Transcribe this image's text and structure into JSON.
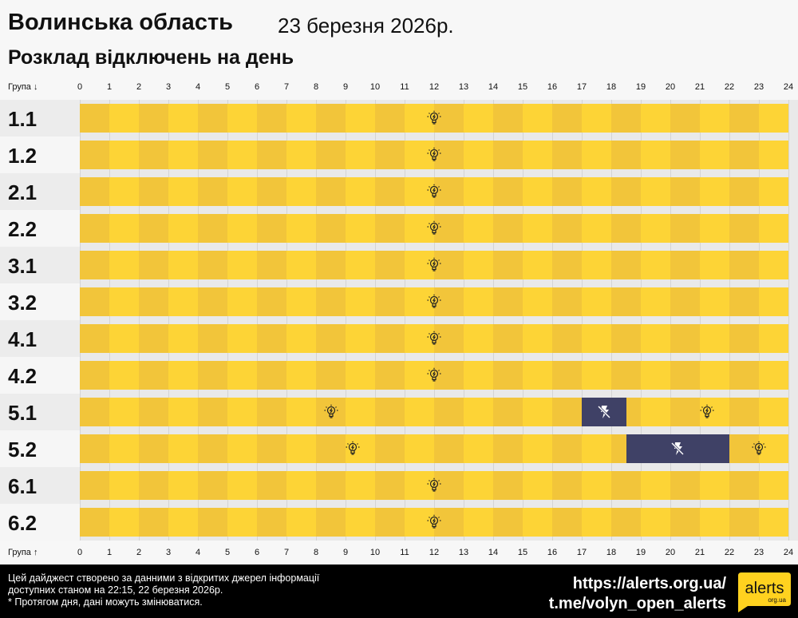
{
  "header": {
    "title": "Волинська область",
    "date": "23 березня 2026р.",
    "subtitle": "Розклад відключень на день"
  },
  "axis": {
    "top_label": "Група ↓",
    "bottom_label": "Група ↑",
    "hours": [
      "0",
      "1",
      "2",
      "3",
      "4",
      "5",
      "6",
      "7",
      "8",
      "9",
      "10",
      "11",
      "12",
      "13",
      "14",
      "15",
      "16",
      "17",
      "18",
      "19",
      "20",
      "21",
      "22",
      "23",
      "24"
    ]
  },
  "colors": {
    "on_even": "#f2c53a",
    "on_odd": "#fdd436",
    "off": "#3f4166",
    "label_odd": "#ececec",
    "label_even": "#f6f6f6"
  },
  "groups": [
    {
      "name": "1.1",
      "segments": [
        {
          "start": 0,
          "end": 24,
          "state": "on"
        }
      ]
    },
    {
      "name": "1.2",
      "segments": [
        {
          "start": 0,
          "end": 24,
          "state": "on"
        }
      ]
    },
    {
      "name": "2.1",
      "segments": [
        {
          "start": 0,
          "end": 24,
          "state": "on"
        }
      ]
    },
    {
      "name": "2.2",
      "segments": [
        {
          "start": 0,
          "end": 24,
          "state": "on"
        }
      ]
    },
    {
      "name": "3.1",
      "segments": [
        {
          "start": 0,
          "end": 24,
          "state": "on"
        }
      ]
    },
    {
      "name": "3.2",
      "segments": [
        {
          "start": 0,
          "end": 24,
          "state": "on"
        }
      ]
    },
    {
      "name": "4.1",
      "segments": [
        {
          "start": 0,
          "end": 24,
          "state": "on"
        }
      ]
    },
    {
      "name": "4.2",
      "segments": [
        {
          "start": 0,
          "end": 24,
          "state": "on"
        }
      ]
    },
    {
      "name": "5.1",
      "segments": [
        {
          "start": 0,
          "end": 17,
          "state": "on"
        },
        {
          "start": 17,
          "end": 18.5,
          "state": "off"
        },
        {
          "start": 18.5,
          "end": 24,
          "state": "on"
        }
      ]
    },
    {
      "name": "5.2",
      "segments": [
        {
          "start": 0,
          "end": 18.5,
          "state": "on"
        },
        {
          "start": 18.5,
          "end": 22,
          "state": "off"
        },
        {
          "start": 22,
          "end": 24,
          "state": "on"
        }
      ]
    },
    {
      "name": "6.1",
      "segments": [
        {
          "start": 0,
          "end": 24,
          "state": "on"
        }
      ]
    },
    {
      "name": "6.2",
      "segments": [
        {
          "start": 0,
          "end": 24,
          "state": "on"
        }
      ]
    }
  ],
  "icons": {
    "on": "lightbulb-icon",
    "off": "no-power-icon"
  },
  "footer": {
    "note_line1": "Цей дайджест створено за данними з відкритих джерел інформації",
    "note_line2": "доступних станом на 22:15, 22 березня 2026р.",
    "note_line3": "* Протягом дня, дані можуть змінюватися.",
    "link1": "https://alerts.org.ua/",
    "link2": "t.me/volyn_open_alerts",
    "logo_text": "alerts",
    "logo_sub": "org.ua"
  }
}
